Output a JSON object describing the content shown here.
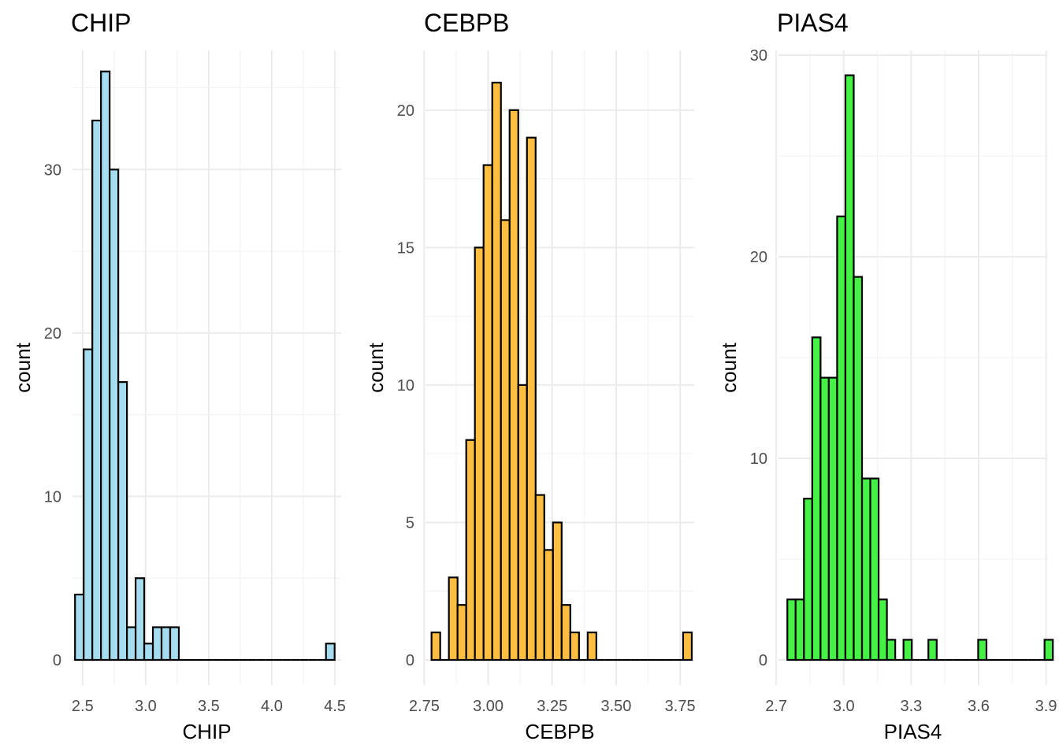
{
  "chart_data": [
    {
      "type": "bar",
      "title": "CHIP",
      "xlabel": "CHIP",
      "ylabel": "count",
      "fill": "#a6dcef",
      "grid": true,
      "xlim": [
        2.42,
        4.55
      ],
      "ylim": [
        0,
        37
      ],
      "xticks": [
        "2.5",
        "3.0",
        "3.5",
        "4.0",
        "4.5"
      ],
      "yticks": [
        "0",
        "10",
        "20",
        "30"
      ],
      "bin_start": 2.44,
      "bin_width": 0.0686,
      "values": [
        4,
        19,
        33,
        36,
        30,
        17,
        2,
        5,
        1,
        2,
        2,
        2,
        0,
        0,
        0,
        0,
        0,
        0,
        0,
        0,
        0,
        0,
        0,
        0,
        0,
        0,
        0,
        0,
        0,
        1
      ]
    },
    {
      "type": "bar",
      "title": "CEBPB",
      "xlabel": "CEBPB",
      "ylabel": "count",
      "fill": "#ffbe40",
      "grid": true,
      "xlim": [
        2.755,
        3.805
      ],
      "ylim": [
        0,
        22
      ],
      "xticks": [
        "2.75",
        "3.00",
        "3.25",
        "3.50",
        "3.75"
      ],
      "yticks": [
        "0",
        "5",
        "10",
        "15",
        "20"
      ],
      "bin_start": 2.7786,
      "bin_width": 0.0339,
      "values": [
        1,
        0,
        3,
        2,
        8,
        15,
        18,
        21,
        16,
        20,
        10,
        19,
        6,
        4,
        5,
        2,
        1,
        0,
        1,
        0,
        0,
        0,
        0,
        0,
        0,
        0,
        0,
        0,
        0,
        1
      ]
    },
    {
      "type": "bar",
      "title": "PIAS4",
      "xlabel": "PIAS4",
      "ylabel": "count",
      "fill": "#44f144",
      "grid": true,
      "xlim": [
        2.71,
        3.905
      ],
      "ylim": [
        0,
        30
      ],
      "xticks": [
        "2.7",
        "3.0",
        "3.3",
        "3.6",
        "3.9"
      ],
      "yticks": [
        "0",
        "10",
        "20",
        "30"
      ],
      "bin_start": 2.7494,
      "bin_width": 0.0369,
      "values": [
        3,
        3,
        8,
        16,
        14,
        14,
        22,
        29,
        19,
        9,
        9,
        3,
        1,
        0,
        1,
        0,
        0,
        1,
        0,
        0,
        0,
        0,
        0,
        1,
        0,
        0,
        0,
        0,
        0,
        0,
        0,
        1
      ]
    }
  ]
}
